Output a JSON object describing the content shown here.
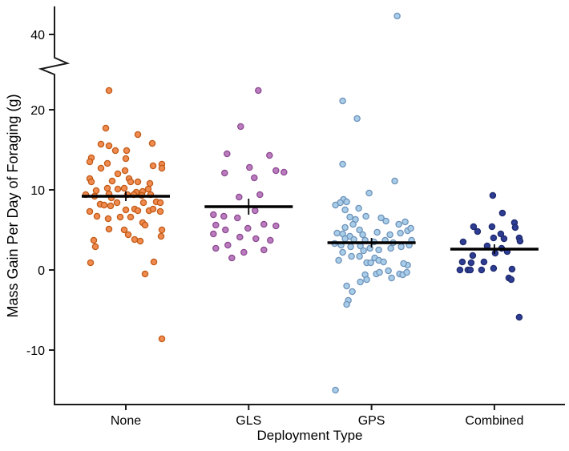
{
  "figure": {
    "background": "#ffffff",
    "text_color": "#000000",
    "axis_color": "#1b1b1b"
  },
  "chart_data": {
    "type": "scatter",
    "subtype": "jitter-strip-plot-with-mean-bars",
    "title": "",
    "xlabel": "Deployment Type",
    "ylabel": "Mass Gain Per Day of Foraging (g)",
    "categories": [
      "None",
      "GLS",
      "GPS",
      "Combined"
    ],
    "y_ticks": [
      {
        "value": -10,
        "label": "-10"
      },
      {
        "value": 0,
        "label": "0"
      },
      {
        "value": 10,
        "label": "10"
      },
      {
        "value": 20,
        "label": "20"
      },
      {
        "value": 40,
        "label": "40"
      }
    ],
    "axis_break": {
      "lower": 25,
      "upper": 40
    },
    "ylim": [
      -16.5,
      44
    ],
    "grid": "off",
    "legend": "none",
    "mean_bar": {
      "color": "#000000",
      "half_width": 55,
      "thickness": 3.6
    },
    "groups": [
      {
        "name": "None",
        "fill": "#F08A4E",
        "stroke": "#C05A17",
        "mean": 9.2,
        "se": 0.6,
        "points": [
          [
            -21,
            22.4
          ],
          [
            -25,
            17.7
          ],
          [
            15,
            16.9
          ],
          [
            -31,
            15.7
          ],
          [
            -21,
            15.5
          ],
          [
            33,
            15.8
          ],
          [
            -13,
            14.9
          ],
          [
            1,
            14.9
          ],
          [
            -43,
            14.0
          ],
          [
            0,
            13.9
          ],
          [
            -45,
            13.5
          ],
          [
            -23,
            13.3
          ],
          [
            -31,
            12.7
          ],
          [
            34,
            13.0
          ],
          [
            45,
            13.2
          ],
          [
            -10,
            12.0
          ],
          [
            -1,
            12.4
          ],
          [
            -45,
            11.4
          ],
          [
            -43,
            11.0
          ],
          [
            4,
            11.4
          ],
          [
            -17,
            11.1
          ],
          [
            6,
            11.0
          ],
          [
            15,
            11.0
          ],
          [
            30,
            10.8
          ],
          [
            45,
            12.7
          ],
          [
            -23,
            10.2
          ],
          [
            -10,
            10.1
          ],
          [
            -2,
            10.2
          ],
          [
            28,
            10.1
          ],
          [
            -37,
            9.9
          ],
          [
            13,
            9.7
          ],
          [
            21,
            9.8
          ],
          [
            -50,
            9.4
          ],
          [
            -39,
            9.2
          ],
          [
            -21,
            9.5
          ],
          [
            -18,
            9.0
          ],
          [
            2,
            9.4
          ],
          [
            10,
            9.4
          ],
          [
            20,
            9.3
          ],
          [
            31,
            9.4
          ],
          [
            38,
            8.5
          ],
          [
            43,
            8.4
          ],
          [
            22,
            8.4
          ],
          [
            -32,
            8.2
          ],
          [
            -27,
            8.1
          ],
          [
            -19,
            8.0
          ],
          [
            -11,
            8.4
          ],
          [
            0,
            7.5
          ],
          [
            11,
            7.6
          ],
          [
            15,
            7.4
          ],
          [
            29,
            7.4
          ],
          [
            34,
            7.6
          ],
          [
            43,
            7.3
          ],
          [
            -45,
            7.3
          ],
          [
            -36,
            6.7
          ],
          [
            -22,
            6.4
          ],
          [
            -7,
            6.6
          ],
          [
            6,
            6.6
          ],
          [
            21,
            5.9
          ],
          [
            24,
            5.6
          ],
          [
            -21,
            5.1
          ],
          [
            -2,
            5.0
          ],
          [
            45,
            5.0
          ],
          [
            44,
            4.2
          ],
          [
            -40,
            3.7
          ],
          [
            -38,
            2.9
          ],
          [
            3,
            4.4
          ],
          [
            11,
            3.8
          ],
          [
            18,
            3.6
          ],
          [
            -44,
            0.9
          ],
          [
            35,
            1.0
          ],
          [
            24,
            -0.5
          ],
          [
            45,
            -8.6
          ]
        ]
      },
      {
        "name": "GLS",
        "fill": "#BA7CBE",
        "stroke": "#8B4A90",
        "mean": 7.9,
        "se": 1.0,
        "points": [
          [
            12,
            22.4
          ],
          [
            -10,
            17.9
          ],
          [
            -27,
            14.5
          ],
          [
            26,
            14.3
          ],
          [
            1,
            12.8
          ],
          [
            34,
            12.4
          ],
          [
            44,
            12.2
          ],
          [
            -30,
            12.1
          ],
          [
            7,
            11.5
          ],
          [
            14,
            9.4
          ],
          [
            -12,
            9.1
          ],
          [
            8,
            7.4
          ],
          [
            -44,
            6.9
          ],
          [
            -31,
            6.7
          ],
          [
            -14,
            6.5
          ],
          [
            -41,
            5.6
          ],
          [
            -29,
            5.0
          ],
          [
            -1,
            5.2
          ],
          [
            19,
            5.7
          ],
          [
            34,
            5.5
          ],
          [
            -44,
            4.5
          ],
          [
            -11,
            4.1
          ],
          [
            9,
            3.9
          ],
          [
            27,
            3.7
          ],
          [
            -26,
            3.1
          ],
          [
            -41,
            2.7
          ],
          [
            -6,
            2.2
          ],
          [
            19,
            2.5
          ],
          [
            -21,
            1.5
          ]
        ]
      },
      {
        "name": "GPS",
        "fill": "#A8CDE9",
        "stroke": "#6E92B8",
        "mean": 3.4,
        "se": 0.6,
        "points": [
          [
            32,
            42.3
          ],
          [
            -36,
            21.1
          ],
          [
            -18,
            18.9
          ],
          [
            -36,
            13.2
          ],
          [
            29,
            11.1
          ],
          [
            -3,
            9.6
          ],
          [
            -35,
            8.8
          ],
          [
            -39,
            8.4
          ],
          [
            -31,
            8.5
          ],
          [
            -45,
            8.1
          ],
          [
            -33,
            7.5
          ],
          [
            -16,
            7.7
          ],
          [
            -27,
            6.6
          ],
          [
            -20,
            6.3
          ],
          [
            -7,
            6.7
          ],
          [
            -23,
            5.7
          ],
          [
            12,
            6.5
          ],
          [
            18,
            6.1
          ],
          [
            34,
            5.7
          ],
          [
            42,
            6.0
          ],
          [
            -33,
            5.3
          ],
          [
            -15,
            5.0
          ],
          [
            -43,
            4.6
          ],
          [
            -36,
            4.5
          ],
          [
            -27,
            4.2
          ],
          [
            -11,
            4.4
          ],
          [
            7,
            4.7
          ],
          [
            23,
            4.4
          ],
          [
            36,
            4.6
          ],
          [
            45,
            4.9
          ],
          [
            49,
            5.2
          ],
          [
            -33,
            3.9
          ],
          [
            -22,
            3.8
          ],
          [
            -8,
            3.7
          ],
          [
            3,
            3.5
          ],
          [
            17,
            3.7
          ],
          [
            27,
            3.4
          ],
          [
            -46,
            3.3
          ],
          [
            -38,
            3.1
          ],
          [
            -26,
            2.9
          ],
          [
            -14,
            3.0
          ],
          [
            -2,
            2.7
          ],
          [
            9,
            2.5
          ],
          [
            24,
            2.7
          ],
          [
            37,
            2.9
          ],
          [
            47,
            3.1
          ],
          [
            50,
            3.7
          ],
          [
            -41,
            1.2
          ],
          [
            -36,
            2.2
          ],
          [
            -25,
            1.7
          ],
          [
            -15,
            1.7
          ],
          [
            -10,
            2.4
          ],
          [
            -6,
            0.9
          ],
          [
            -1,
            0.9
          ],
          [
            4,
            1.5
          ],
          [
            9,
            1.2
          ],
          [
            15,
            1.0
          ],
          [
            21,
            -0.1
          ],
          [
            25,
            -1.0
          ],
          [
            35,
            -0.5
          ],
          [
            39,
            -0.6
          ],
          [
            44,
            -0.3
          ],
          [
            45,
            0.6
          ],
          [
            40,
            0.8
          ],
          [
            6,
            -0.5
          ],
          [
            10,
            -0.3
          ],
          [
            -8,
            -0.6
          ],
          [
            -14,
            -1.5
          ],
          [
            -6,
            -1.2
          ],
          [
            -31,
            -2.0
          ],
          [
            -24,
            -2.7
          ],
          [
            -29,
            -3.8
          ],
          [
            -31,
            -4.3
          ],
          [
            -45,
            -15.0
          ]
        ]
      },
      {
        "name": "Combined",
        "fill": "#2E3D94",
        "stroke": "#1F2B6E",
        "mean": 2.6,
        "se": 0.6,
        "points": [
          [
            -2,
            9.3
          ],
          [
            10,
            7.1
          ],
          [
            25,
            5.9
          ],
          [
            -26,
            5.4
          ],
          [
            -21,
            4.8
          ],
          [
            -3,
            5.4
          ],
          [
            26,
            5.3
          ],
          [
            -39,
            3.5
          ],
          [
            -1,
            4.0
          ],
          [
            8,
            4.5
          ],
          [
            12,
            3.9
          ],
          [
            31,
            4.0
          ],
          [
            32,
            3.6
          ],
          [
            -9,
            3.0
          ],
          [
            9,
            2.7
          ],
          [
            1,
            2.1
          ],
          [
            16,
            2.3
          ],
          [
            -27,
            1.8
          ],
          [
            -40,
            1.0
          ],
          [
            -29,
            0.9
          ],
          [
            -13,
            1.0
          ],
          [
            -43,
            0.0
          ],
          [
            -33,
            0.0
          ],
          [
            -30,
            0.0
          ],
          [
            -16,
            0.0
          ],
          [
            -1,
            0.2
          ],
          [
            22,
            0.1
          ],
          [
            18,
            -1.0
          ],
          [
            21,
            -1.2
          ],
          [
            31,
            -5.9
          ]
        ]
      }
    ]
  }
}
